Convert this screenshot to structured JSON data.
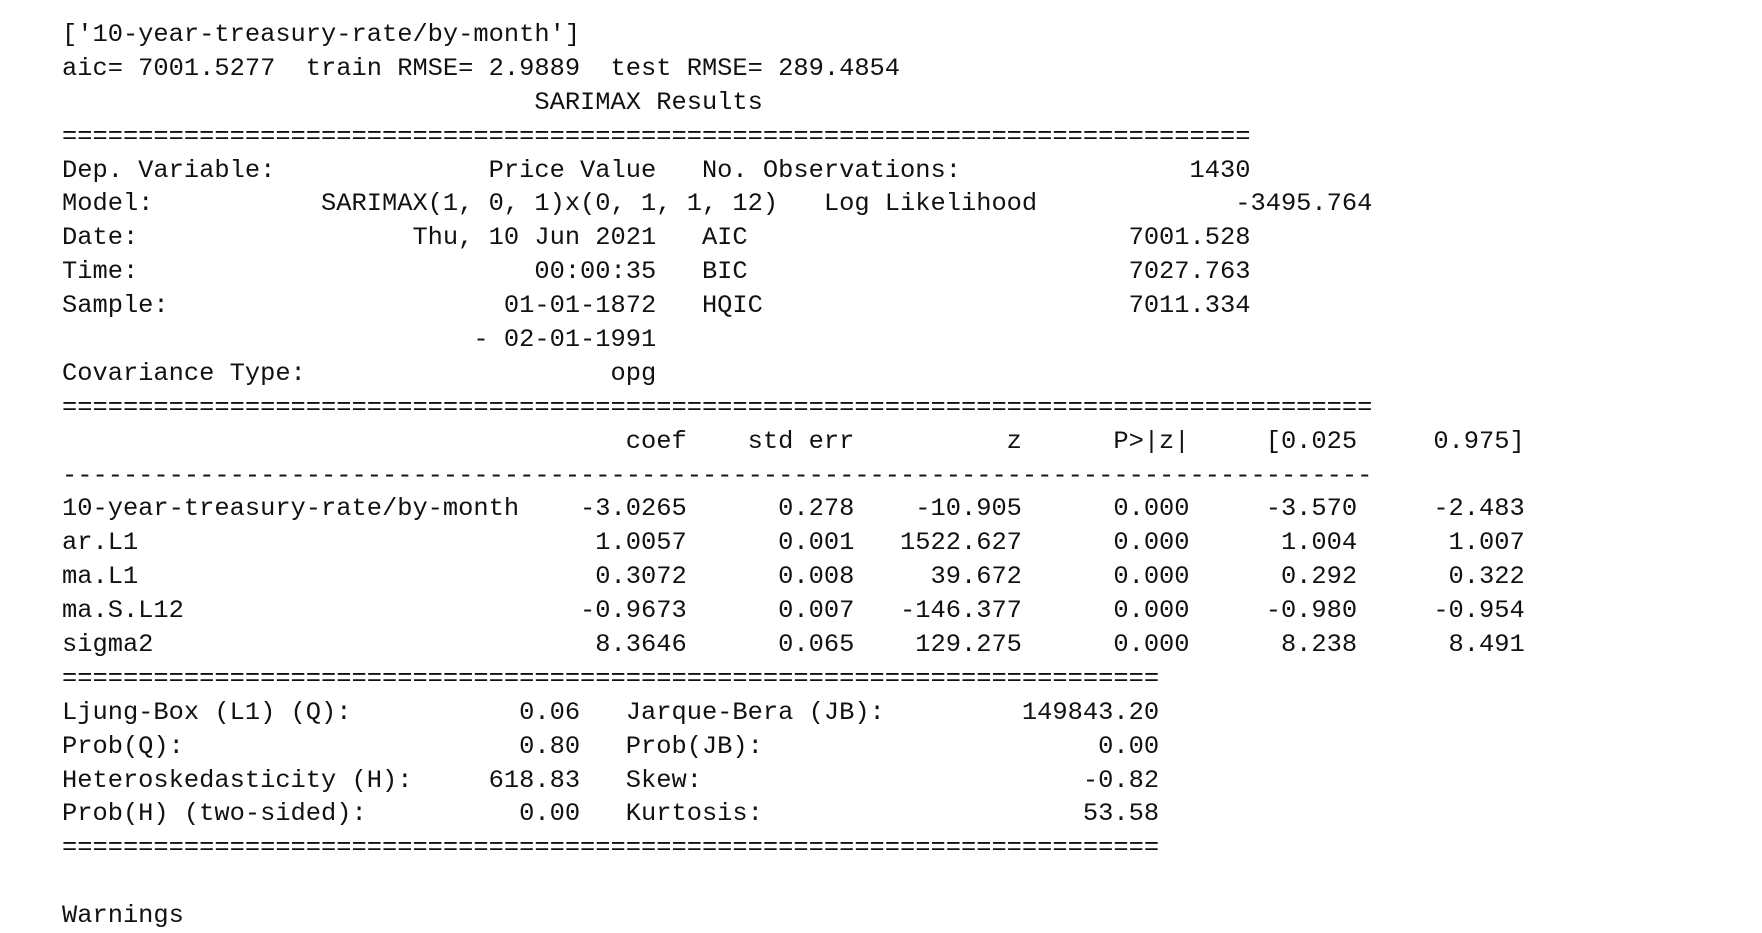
{
  "output": {
    "header_lines": [
      "['10-year-treasury-rate/by-month']",
      "aic= 7001.5277  train RMSE= 2.9889  test RMSE= 289.4854"
    ],
    "title": "SARIMAX Results",
    "top_table": {
      "left_labels": [
        "Dep. Variable:",
        "Model:",
        "Date:",
        "Time:",
        "Sample:",
        "",
        "Covariance Type:"
      ],
      "left_values": [
        "Price Value",
        "SARIMAX(1, 0, 1)x(0, 1, 1, 12)",
        "Thu, 10 Jun 2021",
        "00:00:35",
        "01-01-1872",
        "- 02-01-1991",
        "opg"
      ],
      "right_labels": [
        "No. Observations:",
        "Log Likelihood",
        "AIC",
        "BIC",
        "HQIC",
        "",
        ""
      ],
      "right_values": [
        "1430",
        "-3495.764",
        "7001.528",
        "7027.763",
        "7011.334",
        "",
        ""
      ]
    },
    "coef_table": {
      "headers": [
        "",
        "coef",
        "std err",
        "z",
        "P>|z|",
        "[0.025",
        "0.975]"
      ],
      "rows": [
        [
          "10-year-treasury-rate/by-month",
          "-3.0265",
          "0.278",
          "-10.905",
          "0.000",
          "-3.570",
          "-2.483"
        ],
        [
          "ar.L1",
          "1.0057",
          "0.001",
          "1522.627",
          "0.000",
          "1.004",
          "1.007"
        ],
        [
          "ma.L1",
          "0.3072",
          "0.008",
          "39.672",
          "0.000",
          "0.292",
          "0.322"
        ],
        [
          "ma.S.L12",
          "-0.9673",
          "0.007",
          "-146.377",
          "0.000",
          "-0.980",
          "-0.954"
        ],
        [
          "sigma2",
          "8.3646",
          "0.065",
          "129.275",
          "0.000",
          "8.238",
          "8.491"
        ]
      ]
    },
    "diag_table": {
      "rows": [
        [
          "Ljung-Box (L1) (Q):",
          "0.06",
          "Jarque-Bera (JB):",
          "149843.20"
        ],
        [
          "Prob(Q):",
          "0.80",
          "Prob(JB):",
          "0.00"
        ],
        [
          "Heteroskedasticity (H):",
          "618.83",
          "Skew:",
          "-0.82"
        ],
        [
          "Prob(H) (two-sided):",
          "0.00",
          "Kurtosis:",
          "53.58"
        ]
      ]
    },
    "trailing_text": "Warnings"
  }
}
